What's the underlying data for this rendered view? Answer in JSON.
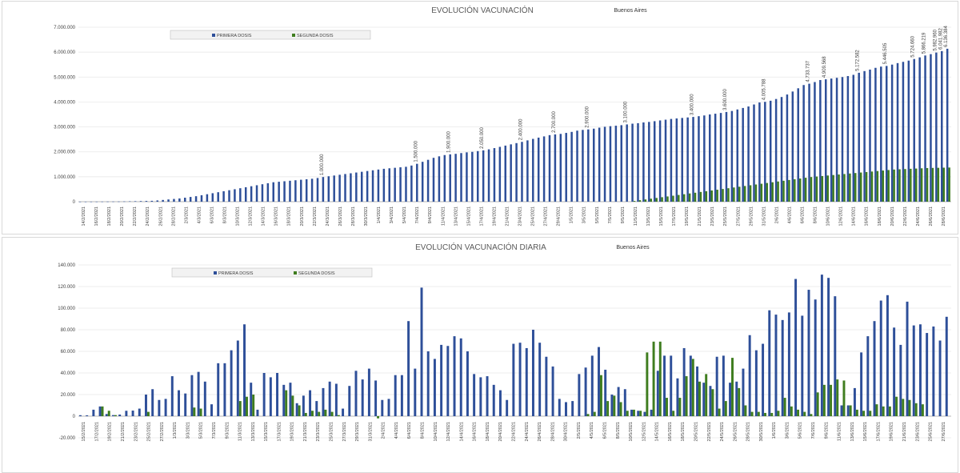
{
  "charts": [
    {
      "id": "cum",
      "title": "EVOLUCIÓN VACUNACIÓN",
      "subtitle": "Buenos Aires",
      "legend": [
        "PRIMERA DOSIS",
        "SEGUNDA DOSIS"
      ],
      "y_ticks": [
        "7.000.000",
        "6.000.000",
        "5.000.000",
        "4.000.000",
        "3.000.000",
        "2.000.000",
        "1.000.000",
        "0"
      ],
      "x_tick_labels": [
        "14/2/2021",
        "16/2/2021",
        "18/2/2021",
        "20/2/2021",
        "22/2/2021",
        "24/2/2021",
        "26/2/2021",
        "28/2/2021",
        "2/3/2021",
        "4/3/2021",
        "6/3/2021",
        "8/3/2021",
        "10/3/2021",
        "12/3/2021",
        "14/3/2021",
        "16/3/2021",
        "18/3/2021",
        "20/3/2021",
        "22/3/2021",
        "24/3/2021",
        "26/3/2021",
        "28/3/2021",
        "30/3/2021",
        "1/4/2021",
        "3/4/2021",
        "5/4/2021",
        "7/4/2021",
        "9/4/2021",
        "11/4/2021",
        "13/4/2021",
        "15/4/2021",
        "17/4/2021",
        "19/4/2021",
        "21/4/2021",
        "23/4/2021",
        "25/4/2021",
        "27/4/2021",
        "29/4/2021",
        "1/5/2021",
        "3/5/2021",
        "5/5/2021",
        "7/5/2021",
        "9/5/2021",
        "11/5/2021",
        "13/5/2021",
        "15/5/2021",
        "17/5/2021",
        "19/5/2021",
        "21/5/2021",
        "23/5/2021",
        "25/5/2021",
        "27/5/2021",
        "29/5/2021",
        "31/5/2021",
        "2/6/2021",
        "4/6/2021",
        "6/6/2021",
        "8/6/2021",
        "10/6/2021",
        "12/6/2021",
        "14/6/2021",
        "16/6/2021",
        "18/6/2021",
        "20/6/2021",
        "22/6/2021",
        "24/6/2021",
        "26/6/2021",
        "28/6/2021"
      ],
      "top_labels": [
        "1.000.000",
        "1.500.000",
        "1.900.000",
        "2.050.000",
        "2.400.000",
        "2.700.000",
        "2.900.000",
        "3.100.000",
        "3.400.000",
        "3.600.000",
        "4.005.788",
        "4.733.737",
        "4.909.568",
        "5.172.582",
        "5.446.505",
        "5.724.660",
        "5.866.219",
        "5.982.960",
        "6.041.982",
        "6.136.384"
      ]
    },
    {
      "id": "daily",
      "title": "EVOLUCIÓN VACUNACIÓN DIARIA",
      "subtitle": "Buenos Aires",
      "legend": [
        "PRIMERA DOSIS",
        "SEGUNDA DOSIS"
      ],
      "y_ticks": [
        "140.000",
        "120.000",
        "100.000",
        "80.000",
        "60.000",
        "40.000",
        "20.000",
        "0",
        "-20.000"
      ],
      "x_tick_labels": [
        "15/2/2021",
        "17/2/2021",
        "19/2/2021",
        "21/2/2021",
        "23/2/2021",
        "25/2/2021",
        "27/2/2021",
        "1/3/2021",
        "3/3/2021",
        "5/3/2021",
        "7/3/2021",
        "9/3/2021",
        "11/3/2021",
        "13/3/2021",
        "15/3/2021",
        "17/3/2021",
        "19/3/2021",
        "21/3/2021",
        "23/3/2021",
        "25/3/2021",
        "27/3/2021",
        "29/3/2021",
        "31/3/2021",
        "2/4/2021",
        "4/4/2021",
        "6/4/2021",
        "8/4/2021",
        "10/4/2021",
        "12/4/2021",
        "14/4/2021",
        "16/4/2021",
        "18/4/2021",
        "20/4/2021",
        "22/4/2021",
        "24/4/2021",
        "26/4/2021",
        "28/4/2021",
        "30/4/2021",
        "2/5/2021",
        "4/5/2021",
        "6/5/2021",
        "8/5/2021",
        "10/5/2021",
        "12/5/2021",
        "14/5/2021",
        "16/5/2021",
        "18/5/2021",
        "20/5/2021",
        "22/5/2021",
        "24/5/2021",
        "26/5/2021",
        "28/5/2021",
        "30/5/2021",
        "1/6/2021",
        "3/6/2021",
        "5/6/2021",
        "7/6/2021",
        "9/6/2021",
        "11/6/2021",
        "13/6/2021",
        "15/6/2021",
        "17/6/2021",
        "19/6/2021",
        "21/6/2021",
        "23/6/2021",
        "25/6/2021",
        "27/6/2021"
      ]
    }
  ],
  "chart_data": [
    {
      "type": "bar",
      "title": "EVOLUCIÓN VACUNACIÓN",
      "subtitle": "Buenos Aires",
      "ylim": [
        0,
        7000000
      ],
      "legend": "top-left",
      "series": [
        {
          "name": "PRIMERA DOSIS",
          "color": "#2e4f99",
          "values": [
            890,
            890,
            2000,
            3000,
            4000,
            5000,
            6000,
            7000,
            10000,
            15000,
            20000,
            25000,
            30000,
            35000,
            50000,
            70000,
            90000,
            110000,
            130000,
            160000,
            190000,
            220000,
            260000,
            300000,
            340000,
            380000,
            420000,
            460000,
            500000,
            540000,
            580000,
            620000,
            660000,
            700000,
            740000,
            780000,
            800000,
            820000,
            840000,
            860000,
            880000,
            900000,
            920000,
            950000,
            990000,
            1020000,
            1050000,
            1080000,
            1110000,
            1140000,
            1170000,
            1200000,
            1230000,
            1260000,
            1290000,
            1320000,
            1340000,
            1360000,
            1380000,
            1400000,
            1450000,
            1520000,
            1600000,
            1680000,
            1760000,
            1820000,
            1870000,
            1900000,
            1920000,
            1950000,
            1980000,
            2000000,
            2030000,
            2060000,
            2100000,
            2150000,
            2200000,
            2250000,
            2300000,
            2350000,
            2400000,
            2460000,
            2520000,
            2570000,
            2620000,
            2670000,
            2700000,
            2720000,
            2760000,
            2800000,
            2850000,
            2880000,
            2900000,
            2930000,
            2970000,
            3005508,
            3030000,
            3048369,
            3070000,
            3100000,
            3130000,
            3150000,
            3180000,
            3200000,
            3230000,
            3260000,
            3290000,
            3320000,
            3340000,
            3360000,
            3380000,
            3400000,
            3430000,
            3460000,
            3500000,
            3530000,
            3560000,
            3600000,
            3640000,
            3700000,
            3760000,
            3820000,
            3900000,
            3980000,
            4005788,
            4050000,
            4120000,
            4200000,
            4300000,
            4420000,
            4550000,
            4680000,
            4733737,
            4800000,
            4880000,
            4909568,
            4940000,
            4970000,
            5000000,
            5040000,
            5090000,
            5172582,
            5240000,
            5300000,
            5370000,
            5420000,
            5446505,
            5500000,
            5560000,
            5610000,
            5660000,
            5724660,
            5790000,
            5866219,
            5920000,
            5982960,
            6041982,
            6136384
          ]
        },
        {
          "name": "SEGUNDA DOSIS",
          "color": "#3f7d1f",
          "values": [
            0,
            0,
            0,
            0,
            0,
            0,
            0,
            0,
            0,
            0,
            0,
            0,
            0,
            0,
            0,
            0,
            0,
            0,
            0,
            0,
            0,
            0,
            0,
            0,
            0,
            0,
            0,
            0,
            0,
            0,
            0,
            0,
            0,
            0,
            0,
            0,
            0,
            0,
            0,
            0,
            0,
            0,
            0,
            0,
            0,
            0,
            0,
            0,
            0,
            0,
            0,
            0,
            0,
            0,
            0,
            0,
            0,
            0,
            0,
            0,
            0,
            0,
            0,
            0,
            0,
            0,
            0,
            0,
            0,
            0,
            0,
            0,
            0,
            0,
            0,
            0,
            0,
            0,
            0,
            0,
            0,
            0,
            0,
            0,
            0,
            0,
            0,
            0,
            0,
            0,
            0,
            0,
            0,
            0,
            0,
            0,
            0,
            0,
            0,
            0,
            30000,
            60000,
            90000,
            120000,
            150000,
            180000,
            210000,
            240000,
            270000,
            300000,
            330000,
            360000,
            390000,
            420000,
            450000,
            480000,
            510000,
            540000,
            570000,
            600000,
            630000,
            660000,
            690000,
            720000,
            750000,
            780000,
            810000,
            840000,
            870000,
            900000,
            930000,
            960000,
            990000,
            1010000,
            1030000,
            1050000,
            1070000,
            1090000,
            1110000,
            1130000,
            1150000,
            1170000,
            1190000,
            1210000,
            1230000,
            1250000,
            1270000,
            1290000,
            1300000,
            1310000,
            1320000,
            1330000,
            1340000,
            1350000,
            1355000,
            1360000,
            1365000,
            1370000
          ]
        }
      ]
    },
    {
      "type": "bar",
      "title": "EVOLUCIÓN VACUNACIÓN DIARIA",
      "subtitle": "Buenos Aires",
      "ylim": [
        -20000,
        140000
      ],
      "legend": "top-left",
      "series": [
        {
          "name": "PRIMERA DOSIS",
          "color": "#2e4f99",
          "values": [
            900,
            800,
            6000,
            9000,
            2000,
            1000,
            1500,
            5000,
            5200,
            7000,
            20000,
            25000,
            15000,
            16000,
            37000,
            24000,
            21000,
            38000,
            41000,
            32000,
            11000,
            49000,
            49000,
            61000,
            70000,
            85000,
            31000,
            6000,
            40000,
            36000,
            40000,
            29000,
            31000,
            12000,
            19000,
            24000,
            14000,
            26000,
            32000,
            30000,
            7000,
            28000,
            42000,
            34000,
            44000,
            33000,
            15000,
            16000,
            38000,
            38000,
            88000,
            44000,
            119000,
            60000,
            53000,
            66000,
            65000,
            74000,
            72000,
            60000,
            39000,
            36000,
            37000,
            29000,
            24000,
            15000,
            67000,
            68000,
            63000,
            80000,
            68000,
            55000,
            46000,
            16000,
            13000,
            14000,
            39000,
            45000,
            56000,
            64000,
            43000,
            20000,
            27000,
            25000,
            6000,
            5000,
            4000,
            6000,
            42000,
            56000,
            56000,
            35000,
            63000,
            56000,
            46000,
            31000,
            28000,
            55000,
            56000,
            31000,
            32000,
            44000,
            75000,
            61000,
            67000,
            98000,
            94000,
            89000,
            96000,
            127000,
            93000,
            117000,
            108000,
            131000,
            128000,
            111000,
            10000,
            10000,
            26000,
            59000,
            74000,
            88000,
            107000,
            112000,
            82000,
            66000,
            106000,
            84000,
            85000,
            77000,
            83000,
            70000,
            92000
          ]
        },
        {
          "name": "SEGUNDA DOSIS",
          "color": "#3f7d1f",
          "values": [
            0,
            0,
            0,
            9000,
            5000,
            1000,
            0,
            0,
            0,
            0,
            4000,
            0,
            0,
            0,
            0,
            0,
            0,
            8000,
            7000,
            0,
            0,
            0,
            0,
            0,
            14000,
            18000,
            20000,
            0,
            0,
            0,
            0,
            24000,
            19000,
            10000,
            3000,
            5000,
            4000,
            6000,
            4000,
            1000,
            0,
            0,
            0,
            0,
            0,
            -2000,
            0,
            0,
            0,
            0,
            0,
            0,
            0,
            0,
            0,
            0,
            0,
            0,
            0,
            0,
            0,
            0,
            0,
            0,
            0,
            0,
            0,
            0,
            0,
            0,
            0,
            0,
            0,
            0,
            0,
            0,
            0,
            2000,
            4000,
            38000,
            14000,
            19000,
            13000,
            5000,
            6000,
            5000,
            59000,
            69000,
            69000,
            17000,
            5000,
            17000,
            37000,
            53000,
            32000,
            39000,
            25000,
            7000,
            14000,
            54000,
            26000,
            10000,
            4000,
            4000,
            3000,
            3000,
            5000,
            17000,
            9000,
            6000,
            4000,
            2000,
            22000,
            29000,
            29000,
            34000,
            33000,
            10000,
            6000,
            5000,
            5000,
            11000,
            9000,
            9000,
            18000,
            16000,
            15000,
            12000,
            11000
          ]
        }
      ]
    }
  ]
}
